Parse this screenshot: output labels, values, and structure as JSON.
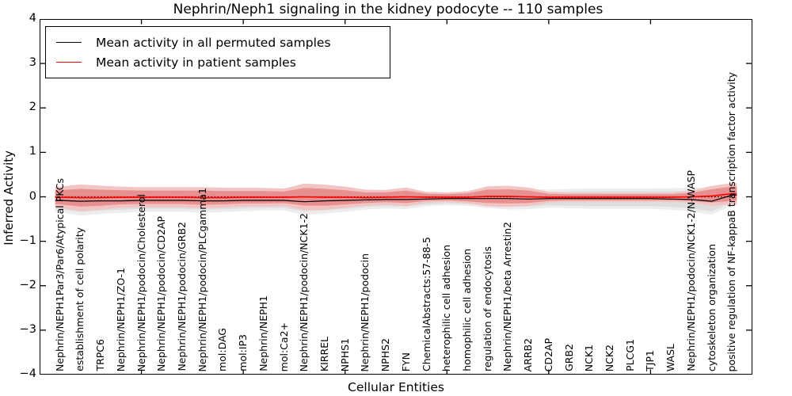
{
  "title": "Nephrin/Neph1 signaling in the kidney podocyte -- 110 samples",
  "axes": {
    "x_label": "Cellular Entities",
    "y_label": "Inferred Activity",
    "y_tick_labels": [
      "4",
      "3",
      "2",
      "1",
      "0",
      "−1",
      "−2",
      "−3",
      "−4"
    ],
    "y_range": [
      -4,
      4
    ],
    "x_major_tick_units": [
      5,
      10,
      15,
      20,
      25,
      30
    ]
  },
  "legend": {
    "entries": [
      {
        "label": "Mean activity in all permuted samples",
        "color": "#000000"
      },
      {
        "label": "Mean activity in patient samples",
        "color": "#ff0000"
      }
    ]
  },
  "colors": {
    "frame": "#000000",
    "permuted_line": "#000000",
    "patient_line": "#ff0000",
    "permuted_band_inner": "#dedede",
    "permuted_band_outer": "#ededed",
    "patient_band_inner": "#e89090",
    "patient_band_outer": "#f2c4c4",
    "zero_line": "#000000"
  },
  "chart_data": {
    "type": "line",
    "title": "Nephrin/Neph1 signaling in the kidney podocyte -- 110 samples",
    "xlabel": "Cellular Entities",
    "ylabel": "Inferred Activity",
    "ylim": [
      -4,
      4
    ],
    "grid": false,
    "legend_position": "upper left",
    "reference_line": {
      "y": 0,
      "style": "dotted",
      "color": "#000000"
    },
    "categories": [
      "Nephrin/NEPH1Par3/Par6/Atypical PKCs",
      "establishment of cell polarity",
      "TRPC6",
      "Nephrin/NEPH1/ZO-1",
      "Nephrin/NEPH1/podocin/Cholesterol",
      "Nephrin/NEPH1/podocin/CD2AP",
      "Nephrin/NEPH1/podocin/GRB2",
      "Nephrin/NEPH1/podocin/PLCgamma1",
      "mol:DAG",
      "mol:IP3",
      "Nephrin/NEPH1",
      "mol:Ca2+",
      "Nephrin/NEPH1/podocin/NCK1-2",
      "KIRREL",
      "NPHS1",
      "Nephrin/NEPH1/podocin",
      "NPHS2",
      "FYN",
      "ChemicalAbstracts:57-88-5",
      "heterophilic cell adhesion",
      "homophilic cell adhesion",
      "regulation of endocytosis",
      "Nephrin/NEPH1/beta Arrestin2",
      "ARRB2",
      "CD2AP",
      "GRB2",
      "NCK1",
      "NCK2",
      "PLCG1",
      "TJP1",
      "WASL",
      "Nephrin/NEPH1/podocin/NCK1-2/N-WASP",
      "cytoskeleton organization",
      "positive regulation of NF-kappaB transcription factor activity"
    ],
    "series": [
      {
        "name": "Mean activity in all permuted samples",
        "color": "#000000",
        "values": [
          -0.08,
          -0.1,
          -0.09,
          -0.09,
          -0.08,
          -0.08,
          -0.08,
          -0.09,
          -0.09,
          -0.08,
          -0.08,
          -0.08,
          -0.11,
          -0.09,
          -0.08,
          -0.07,
          -0.06,
          -0.06,
          -0.05,
          -0.04,
          -0.04,
          -0.04,
          -0.04,
          -0.05,
          -0.04,
          -0.04,
          -0.04,
          -0.04,
          -0.04,
          -0.04,
          -0.05,
          -0.06,
          -0.1,
          0.04
        ],
        "band_halfwidth": [
          0.2,
          0.24,
          0.22,
          0.2,
          0.19,
          0.19,
          0.19,
          0.2,
          0.19,
          0.18,
          0.17,
          0.17,
          0.22,
          0.21,
          0.19,
          0.16,
          0.15,
          0.16,
          0.12,
          0.11,
          0.12,
          0.16,
          0.18,
          0.17,
          0.15,
          0.16,
          0.17,
          0.17,
          0.17,
          0.17,
          0.18,
          0.2,
          0.22,
          0.18
        ]
      },
      {
        "name": "Mean activity in patient samples",
        "color": "#ff0000",
        "values": [
          -0.01,
          -0.02,
          -0.02,
          -0.01,
          -0.01,
          -0.01,
          -0.01,
          -0.02,
          -0.02,
          -0.01,
          -0.01,
          -0.01,
          0.0,
          -0.01,
          -0.01,
          -0.02,
          -0.01,
          0.0,
          -0.01,
          -0.01,
          -0.01,
          0.01,
          0.01,
          0.0,
          -0.01,
          -0.01,
          -0.01,
          -0.01,
          -0.01,
          -0.01,
          -0.01,
          0.0,
          0.02,
          0.07
        ],
        "band_halfwidth": [
          0.16,
          0.2,
          0.18,
          0.16,
          0.15,
          0.15,
          0.15,
          0.16,
          0.15,
          0.14,
          0.14,
          0.13,
          0.2,
          0.19,
          0.16,
          0.12,
          0.11,
          0.14,
          0.08,
          0.07,
          0.09,
          0.15,
          0.16,
          0.14,
          0.08,
          0.07,
          0.07,
          0.07,
          0.07,
          0.07,
          0.07,
          0.09,
          0.15,
          0.16
        ]
      }
    ]
  }
}
